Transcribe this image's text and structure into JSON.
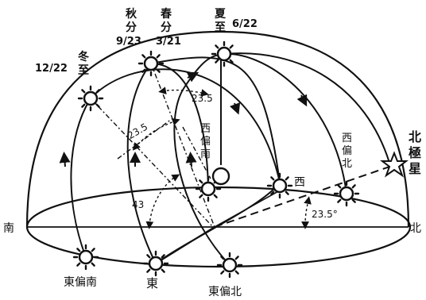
{
  "colors": {
    "ink": "#111111",
    "paper": "#ffffff"
  },
  "labels": {
    "south": "南",
    "north": "北",
    "east": "東",
    "west": "西",
    "east_south": "東偏南",
    "east_north": "東偏北",
    "west_south": [
      "西",
      "偏",
      "南"
    ],
    "west_north": [
      "西",
      "偏",
      "北"
    ],
    "polaris": [
      "北",
      "極",
      "星"
    ],
    "winter_solstice": [
      "冬",
      "至"
    ],
    "winter_date": "12/22",
    "autumn_equinox": [
      "秋",
      "分"
    ],
    "autumn_date": "9/23",
    "spring_equinox": [
      "春",
      "分"
    ],
    "spring_date": "3/21",
    "summer_solstice": [
      "夏",
      "至"
    ],
    "summer_date": "6/22",
    "angle_tilt_1": "23.5",
    "angle_tilt_2": "23.5",
    "angle_latitude": "43",
    "angle_polaris": "23.5°"
  },
  "icons": {
    "sun": "sun-icon",
    "star": "star-icon",
    "observer": "observer-circle"
  }
}
